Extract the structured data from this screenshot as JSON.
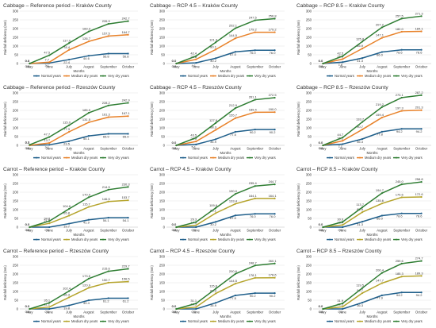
{
  "colors": {
    "normal": "#1f5f8b",
    "medium": "#e8822a",
    "very_dry": "#2e7d32",
    "medium_carrot": "#b5a42c",
    "grid": "#e3e3e3",
    "axis": "#bdbdbd",
    "text": "#333333"
  },
  "chart_data": [
    {
      "type": "line",
      "title": "Cabbage – Reference period – Kraków County",
      "xlabel": "Months",
      "ylabel": "Rainfall deficiency (mm)",
      "ylim": [
        0,
        300
      ],
      "yticks": [
        0,
        50,
        100,
        150,
        200,
        250,
        300
      ],
      "categories": [
        "May",
        "June",
        "July",
        "August",
        "September",
        "October"
      ],
      "series": [
        {
          "name": "Normal years",
          "values": [
            0.0,
            3.1,
            22.4,
            44.6,
            56.8,
            56.8
          ],
          "labels": [
            "0.0",
            "3.1",
            "22.4",
            "44.6",
            "56.8",
            "56.8"
          ]
        },
        {
          "name": "Medium dry years",
          "values": [
            0.0,
            7.7,
            78.4,
            126.7,
            157.5,
            164.7
          ],
          "labels": [
            "0.0",
            "7.7",
            "78.4",
            "126.7",
            "157.5",
            "164.7"
          ]
        },
        {
          "name": "Very dry years",
          "values": [
            0.4,
            47.5,
            117.0,
            183.3,
            226.9,
            242.7
          ],
          "labels": [
            "0.4",
            "47.5",
            "117.0",
            "183.3",
            "226.9",
            "242.7"
          ]
        }
      ],
      "legend": "bottom",
      "grid": true
    },
    {
      "type": "line",
      "title": "Cabbage – RCP 4.5 – Kraków County",
      "xlabel": "Months",
      "ylabel": "Rainfall deficiency (mm)",
      "ylim": [
        0,
        300
      ],
      "yticks": [
        0,
        50,
        100,
        150,
        200,
        250,
        300
      ],
      "categories": [
        "May",
        "June",
        "July",
        "August",
        "September",
        "October"
      ],
      "series": [
        {
          "name": "Normal years",
          "values": [
            0.0,
            4.1,
            30.2,
            67.0,
            76.0,
            76.0
          ],
          "labels": [
            "0.0",
            "4.1",
            "30.2",
            "67.0",
            "76.0",
            "76.0"
          ]
        },
        {
          "name": "Medium dry years",
          "values": [
            0.0,
            23.8,
            80.1,
            144.5,
            179.2,
            179.2
          ],
          "labels": [
            "0.0",
            "23.8",
            "80.1",
            "144.5",
            "179.2",
            "179.2"
          ]
        },
        {
          "name": "Very dry years",
          "values": [
            0.0,
            42.4,
            121.3,
            202.1,
            247.5,
            256.8
          ],
          "labels": [
            "0.0",
            "42.4",
            "121.3",
            "202.1",
            "247.5",
            "256.8"
          ]
        }
      ],
      "legend": "bottom",
      "grid": true
    },
    {
      "type": "line",
      "title": "Cabbage – RCP 8.5 – Kraków County",
      "xlabel": "Months",
      "ylabel": "Rainfall deficiency (mm)",
      "ylim": [
        0,
        300
      ],
      "yticks": [
        0,
        50,
        100,
        150,
        200,
        250,
        300
      ],
      "categories": [
        "May",
        "June",
        "July",
        "August",
        "September",
        "October"
      ],
      "series": [
        {
          "name": "Normal years",
          "values": [
            0.0,
            7.8,
            31.3,
            66.0,
            78.6,
            78.6
          ],
          "labels": [
            "0.0",
            "7.8",
            "31.3",
            "66.0",
            "78.6",
            "78.6"
          ]
        },
        {
          "name": "Medium dry years",
          "values": [
            0.0,
            25.6,
            85.9,
            147.1,
            182.0,
            184.1
          ],
          "labels": [
            "0.0",
            "25.6",
            "85.9",
            "147.1",
            "182.0",
            "184.1"
          ]
        },
        {
          "name": "Very dry years",
          "values": [
            0.0,
            42.5,
            125.8,
            207.2,
            257.5,
            271.3
          ],
          "labels": [
            "0.0",
            "42.5",
            "125.8",
            "207.2",
            "257.5",
            "271.3"
          ]
        }
      ],
      "legend": "bottom",
      "grid": true
    },
    {
      "type": "line",
      "title": "Cabbage – Reference period – Rzeszów County",
      "xlabel": "Months",
      "ylabel": "Rainfall deficiency (mm)",
      "ylim": [
        0,
        300
      ],
      "yticks": [
        0,
        50,
        100,
        150,
        200,
        250,
        300
      ],
      "categories": [
        "May",
        "June",
        "July",
        "August",
        "September",
        "October"
      ],
      "series": [
        {
          "name": "Normal years",
          "values": [
            0.0,
            3.1,
            23.5,
            54.1,
            65.9,
            65.9
          ],
          "labels": [
            "0.0",
            "3.1",
            "23.5",
            "54.1",
            "65.9",
            "65.9"
          ]
        },
        {
          "name": "Medium dry years",
          "values": [
            0.0,
            13.7,
            77.3,
            131.5,
            161.3,
            167.1
          ],
          "labels": [
            "0.0",
            "13.7",
            "77.3",
            "131.5",
            "161.3",
            "167.1"
          ]
        },
        {
          "name": "Very dry years",
          "values": [
            3.3,
            47.7,
            115.0,
            185.9,
            228.2,
            242.9
          ],
          "labels": [
            "3.3",
            "47.7",
            "115.0",
            "185.9",
            "228.2",
            "242.9"
          ]
        }
      ],
      "legend": "bottom",
      "grid": true
    },
    {
      "type": "line",
      "title": "Cabbage – RCP 4.5 – Rzeszów County",
      "xlabel": "Months",
      "ylabel": "Rainfall deficiency (mm)",
      "ylim": [
        0,
        300
      ],
      "yticks": [
        0,
        50,
        100,
        150,
        200,
        250,
        300
      ],
      "categories": [
        "May",
        "June",
        "July",
        "August",
        "September",
        "October"
      ],
      "series": [
        {
          "name": "Normal years",
          "values": [
            0.0,
            5.1,
            34.9,
            77.5,
            90.2,
            90.2
          ],
          "labels": [
            "0.0",
            "5.1",
            "34.9",
            "77.5",
            "90.2",
            "90.2"
          ]
        },
        {
          "name": "Medium dry years",
          "values": [
            0.0,
            22.0,
            88.3,
            155.7,
            189.4,
            190.0
          ],
          "labels": [
            "0.0",
            "22.0",
            "88.3",
            "155.7",
            "189.4",
            "190.0"
          ]
        },
        {
          "name": "Very dry years",
          "values": [
            0.0,
            43.5,
            127.9,
            212.9,
            261.1,
            272.5
          ],
          "labels": [
            "0.0",
            "43.5",
            "127.9",
            "212.9",
            "261.1",
            "272.5"
          ]
        }
      ],
      "legend": "bottom",
      "grid": true
    },
    {
      "type": "line",
      "title": "Cabbage – RCP 8.5 – Rzeszów County",
      "xlabel": "Months",
      "ylabel": "Rainfall deficiency (mm)",
      "ylim": [
        0,
        300
      ],
      "yticks": [
        0,
        50,
        100,
        150,
        200,
        250,
        300
      ],
      "categories": [
        "May",
        "June",
        "July",
        "August",
        "September",
        "October"
      ],
      "series": [
        {
          "name": "Normal years",
          "values": [
            0.0,
            7.1,
            36.3,
            77.8,
            94.2,
            94.2
          ],
          "labels": [
            "0.0",
            "7.1",
            "36.3",
            "77.8",
            "94.2",
            "94.2"
          ]
        },
        {
          "name": "Medium dry years",
          "values": [
            0.0,
            26.1,
            90.7,
            159.4,
            197.3,
            201.3
          ],
          "labels": [
            "0.0",
            "26.1",
            "90.7",
            "159.4",
            "197.3",
            "201.3"
          ]
        },
        {
          "name": "Very dry years",
          "values": [
            0.0,
            44.7,
            133.7,
            219.2,
            273.1,
            287.2
          ],
          "labels": [
            "0.0",
            "44.7",
            "133.7",
            "219.2",
            "273.1",
            "287.2"
          ]
        }
      ],
      "legend": "bottom",
      "grid": true
    },
    {
      "type": "line",
      "title": "Carrot – Reference period – Kraków County",
      "xlabel": "Months",
      "ylabel": "Rainfall deficiency (mm)",
      "ylim": [
        0,
        300
      ],
      "yticks": [
        0,
        50,
        100,
        150,
        200,
        250,
        300
      ],
      "categories": [
        "May",
        "June",
        "July",
        "August",
        "September",
        "October"
      ],
      "series": [
        {
          "name": "Normal years",
          "values": [
            0.0,
            0.0,
            19.7,
            41.9,
            54.1,
            54.1
          ],
          "labels": [
            "0.0",
            "0.0",
            "19.7",
            "41.9",
            "54.1",
            "54.1"
          ]
        },
        {
          "name": "Medium dry years",
          "values": [
            0.0,
            21.8,
            65.8,
            115.7,
            146.5,
            153.7
          ],
          "labels": [
            "0.0",
            "21.8",
            "65.8",
            "115.7",
            "146.5",
            "153.7"
          ]
        },
        {
          "name": "Very dry years",
          "values": [
            0.0,
            34.8,
            104.6,
            170.9,
            214.5,
            230.3
          ],
          "labels": [
            "0.0",
            "34.8",
            "104.6",
            "170.9",
            "214.5",
            "230.3"
          ]
        }
      ],
      "legend": "bottom",
      "grid": true
    },
    {
      "type": "line",
      "title": "Carrot – RCP 4.5 – Kraków County",
      "xlabel": "Months",
      "ylabel": "Rainfall deficiency (mm)",
      "ylim": [
        0,
        300
      ],
      "yticks": [
        0,
        50,
        100,
        150,
        200,
        250,
        300
      ],
      "categories": [
        "May",
        "June",
        "July",
        "August",
        "September",
        "October"
      ],
      "series": [
        {
          "name": "Normal years",
          "values": [
            0.0,
            0.0,
            30.2,
            67.0,
            76.0,
            76.0
          ],
          "labels": [
            "0.0",
            "0.0",
            "30.2",
            "67.0",
            "76.0",
            "76.0"
          ]
        },
        {
          "name": "Medium dry years",
          "values": [
            0.0,
            10.8,
            80.1,
            133.4,
            164.1,
            164.1
          ],
          "labels": [
            "0.0",
            "10.8",
            "80.1",
            "133.4",
            "164.1",
            "164.1"
          ]
        },
        {
          "name": "Very dry years",
          "values": [
            0.0,
            29.3,
            109.6,
            190.0,
            235.4,
            244.7
          ],
          "labels": [
            "0.0",
            "29.3",
            "109.6",
            "190.0",
            "235.4",
            "244.7"
          ]
        }
      ],
      "legend": "bottom",
      "grid": true
    },
    {
      "type": "line",
      "title": "Carrot – RCP 8.5 – Kraków County",
      "xlabel": "Months",
      "ylabel": "Rainfall deficiency (mm)",
      "ylim": [
        0,
        300
      ],
      "yticks": [
        0,
        50,
        100,
        150,
        200,
        250,
        300
      ],
      "categories": [
        "May",
        "June",
        "July",
        "August",
        "September",
        "October"
      ],
      "series": [
        {
          "name": "Normal years",
          "values": [
            0.0,
            0.0,
            31.3,
            66.0,
            78.6,
            78.6
          ],
          "labels": [
            "0.0",
            "0.0",
            "31.3",
            "66.0",
            "78.6",
            "78.6"
          ]
        },
        {
          "name": "Medium dry years",
          "values": [
            0.0,
            12.4,
            85.9,
            135.6,
            170.6,
            172.6
          ],
          "labels": [
            "0.0",
            "12.4",
            "85.9",
            "135.6",
            "170.6",
            "172.6"
          ]
        },
        {
          "name": "Very dry years",
          "values": [
            0.0,
            30.0,
            113.7,
            194.7,
            245.0,
            258.8
          ],
          "labels": [
            "0.0",
            "30.0",
            "113.7",
            "194.7",
            "245.0",
            "258.8"
          ]
        }
      ],
      "legend": "bottom",
      "grid": true
    },
    {
      "type": "line",
      "title": "Carrot – Reference period – Rzeszów County",
      "xlabel": "Months",
      "ylabel": "Rainfall deficiency (mm)",
      "ylim": [
        0,
        300
      ],
      "yticks": [
        0,
        50,
        100,
        150,
        200,
        250,
        300
      ],
      "categories": [
        "May",
        "June",
        "July",
        "August",
        "September",
        "October"
      ],
      "series": [
        {
          "name": "Normal years",
          "values": [
            0.0,
            0.0,
            19.8,
            49.4,
            61.2,
            61.2
          ],
          "labels": [
            "0.0",
            "0.0",
            "19.8",
            "49.4",
            "61.2",
            "61.2"
          ]
        },
        {
          "name": "Medium dry years",
          "values": [
            0.0,
            11.1,
            66.3,
            120.9,
            150.7,
            156.5
          ],
          "labels": [
            "0.0",
            "11.1",
            "66.3",
            "120.9",
            "150.7",
            "156.5"
          ]
        },
        {
          "name": "Very dry years",
          "values": [
            0.0,
            35.1,
            102.4,
            173.5,
            215.6,
            229.7
          ],
          "labels": [
            "0.0",
            "35.1",
            "102.4",
            "173.5",
            "215.6",
            "229.7"
          ]
        }
      ],
      "legend": "bottom",
      "grid": true
    },
    {
      "type": "line",
      "title": "Carrot – RCP 4.5 – Rzeszów County",
      "xlabel": "Months",
      "ylabel": "Rainfall deficiency (mm)",
      "ylim": [
        0,
        300
      ],
      "yticks": [
        0,
        50,
        100,
        150,
        200,
        250,
        300
      ],
      "categories": [
        "May",
        "June",
        "July",
        "August",
        "September",
        "October"
      ],
      "series": [
        {
          "name": "Normal years",
          "values": [
            0.0,
            0.0,
            34.9,
            77.5,
            90.2,
            90.2
          ],
          "labels": [
            "0.0",
            "0.0",
            "34.9",
            "77.5",
            "90.2",
            "90.2"
          ]
        },
        {
          "name": "Medium dry years",
          "values": [
            0.0,
            10.5,
            88.3,
            144.5,
            178.1,
            178.6
          ],
          "labels": [
            "0.0",
            "10.5",
            "88.3",
            "144.5",
            "178.1",
            "178.6"
          ]
        },
        {
          "name": "Very dry years",
          "values": [
            0.0,
            31.1,
            115.6,
            200.6,
            248.7,
            260.1
          ],
          "labels": [
            "0.0",
            "31.1",
            "115.6",
            "200.6",
            "248.7",
            "260.1"
          ]
        }
      ],
      "legend": "bottom",
      "grid": true
    },
    {
      "type": "line",
      "title": "Carrot – RCP 8.5 – Rzeszów County",
      "xlabel": "Months",
      "ylabel": "Rainfall deficiency (mm)",
      "ylim": [
        0,
        300
      ],
      "yticks": [
        0,
        50,
        100,
        150,
        200,
        250,
        300
      ],
      "categories": [
        "May",
        "June",
        "July",
        "August",
        "September",
        "October"
      ],
      "series": [
        {
          "name": "Normal years",
          "values": [
            0.0,
            0.0,
            36.3,
            77.9,
            94.2,
            94.2
          ],
          "labels": [
            "0.0",
            "0.0",
            "36.3",
            "77.9",
            "94.2",
            "94.2"
          ]
        },
        {
          "name": "Medium dry years",
          "values": [
            0.0,
            12.3,
            90.7,
            147.7,
            185.3,
            189.3
          ],
          "labels": [
            "0.0",
            "12.3",
            "90.7",
            "147.7",
            "185.3",
            "189.3"
          ]
        },
        {
          "name": "Very dry years",
          "values": [
            0.0,
            31.9,
            119.5,
            206.4,
            259.6,
            274.7
          ],
          "labels": [
            "0.0",
            "31.9",
            "119.5",
            "206.4",
            "259.6",
            "274.7"
          ]
        }
      ],
      "legend": "bottom",
      "grid": true
    }
  ]
}
